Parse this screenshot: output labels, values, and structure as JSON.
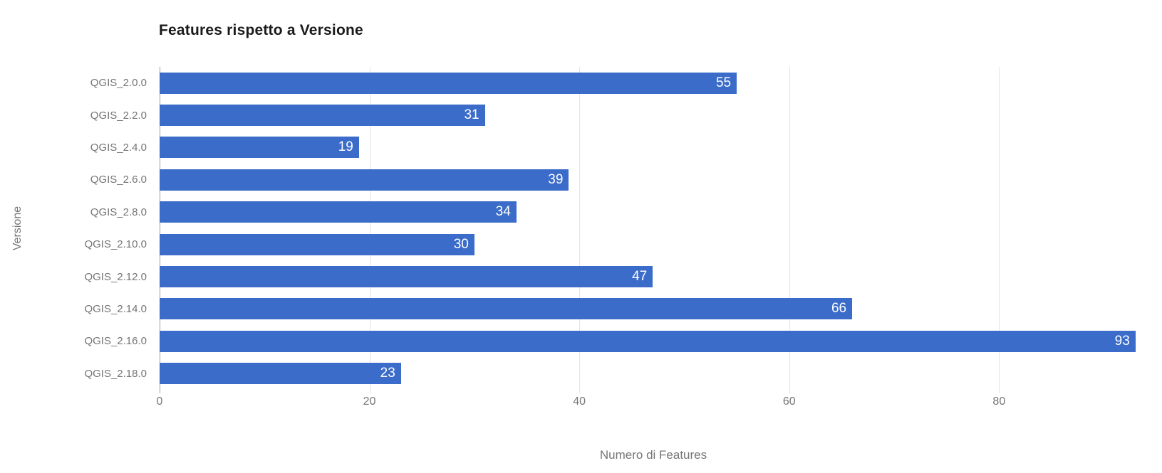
{
  "chart_data": {
    "type": "bar",
    "orientation": "horizontal",
    "title": "Features rispetto a Versione",
    "xlabel": "Numero di Features",
    "ylabel": "Versione",
    "categories": [
      "QGIS_2.0.0",
      "QGIS_2.2.0",
      "QGIS_2.4.0",
      "QGIS_2.6.0",
      "QGIS_2.8.0",
      "QGIS_2.10.0",
      "QGIS_2.12.0",
      "QGIS_2.14.0",
      "QGIS_2.16.0",
      "QGIS_2.18.0"
    ],
    "values": [
      55,
      31,
      19,
      39,
      34,
      30,
      47,
      66,
      93,
      23
    ],
    "value_labels": [
      "55",
      "31",
      "19",
      "39",
      "34",
      "30",
      "47",
      "66",
      "93",
      "23"
    ],
    "xticks": [
      0,
      20,
      40,
      60,
      80
    ],
    "xtick_labels": [
      "0",
      "20",
      "40",
      "60",
      "80"
    ],
    "xlim": [
      0,
      94.1
    ],
    "grid": true,
    "legend": "none",
    "colors": {
      "bar": "#3b6cc9",
      "baseline": "#9b9b9b",
      "gridline": "#e3e3e3",
      "axis_text": "#757575",
      "value_label": "#ffffff",
      "title_text": "#1a1a1a"
    }
  }
}
